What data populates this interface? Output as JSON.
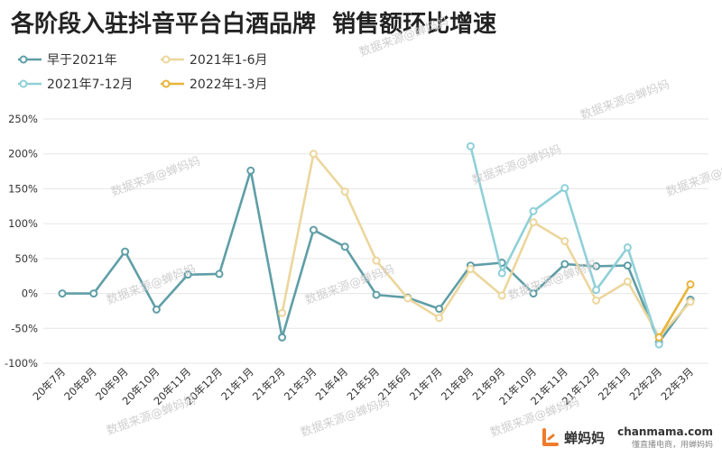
{
  "title": "各阶段入驻抖音平台白酒品牌  销售额环比增速",
  "watermark": "数据来源@蝉妈妈",
  "brand": {
    "name": "蝉妈妈",
    "domain": "chanmama.com",
    "slogan": "懂直播电商，用蝉妈妈",
    "color": "#f07b2a"
  },
  "chart_data": {
    "type": "line",
    "categories": [
      "20年7月",
      "20年8月",
      "20年9月",
      "20年10月",
      "20年11月",
      "20年12月",
      "21年1月",
      "21年2月",
      "21年3月",
      "21年4月",
      "21年5月",
      "21年6月",
      "21年7月",
      "21年8月",
      "21年9月",
      "21年10月",
      "21年11月",
      "21年12月",
      "22年1月",
      "22年2月",
      "22年3月"
    ],
    "y_ticks": [
      "250%",
      "200%",
      "150%",
      "100%",
      "50%",
      "0%",
      "-50%",
      "-100%"
    ],
    "ylim": [
      -100,
      250
    ],
    "y_unit": "%",
    "grid": "horizontal",
    "legend_position": "top-left",
    "series": [
      {
        "name": "早于2021年",
        "color": "#5f9ea6",
        "values": [
          0,
          0,
          60,
          -23,
          27,
          28,
          176,
          -63,
          91,
          67,
          -2,
          -6,
          -22,
          40,
          44,
          0,
          42,
          39,
          40,
          -70,
          -9
        ]
      },
      {
        "name": "2021年1-6月",
        "color": "#ecd69c",
        "values": [
          null,
          null,
          null,
          null,
          null,
          null,
          null,
          -28,
          200,
          146,
          47,
          -7,
          -35,
          35,
          -3,
          102,
          75,
          -10,
          17,
          -62,
          -12
        ]
      },
      {
        "name": "2021年7-12月",
        "color": "#8fd0d8",
        "values": [
          null,
          null,
          null,
          null,
          null,
          null,
          null,
          null,
          null,
          null,
          null,
          null,
          null,
          211,
          29,
          118,
          151,
          5,
          66,
          -73,
          null
        ]
      },
      {
        "name": "2022年1-3月",
        "color": "#e8b43a",
        "values": [
          null,
          null,
          null,
          null,
          null,
          null,
          null,
          null,
          null,
          null,
          null,
          null,
          null,
          null,
          null,
          null,
          null,
          null,
          null,
          -63,
          13
        ]
      }
    ]
  }
}
